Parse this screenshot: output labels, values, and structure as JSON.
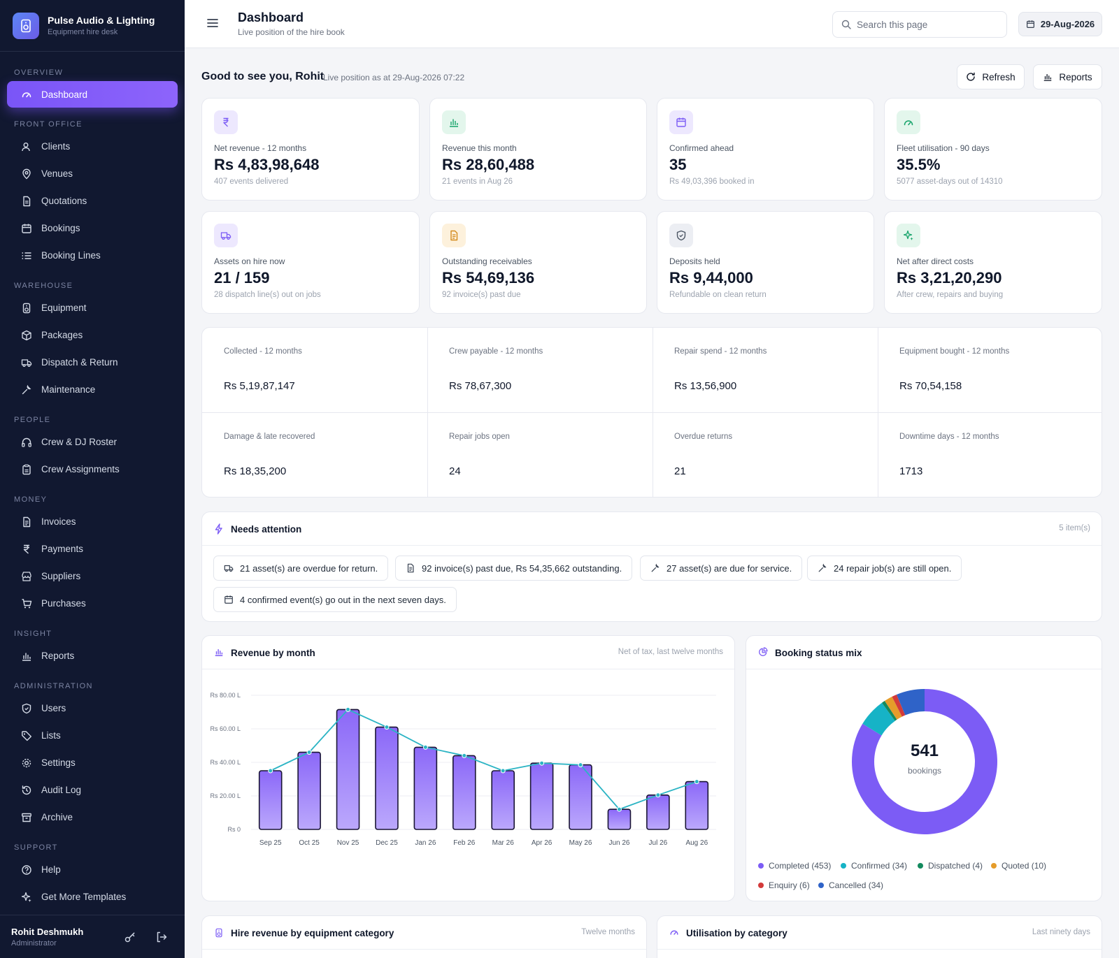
{
  "brand": {
    "title": "Pulse Audio & Lighting",
    "subtitle": "Equipment hire desk"
  },
  "nav": {
    "overview": "OVERVIEW",
    "dashboard": "Dashboard",
    "front_office": "FRONT OFFICE",
    "clients": "Clients",
    "venues": "Venues",
    "quotations": "Quotations",
    "bookings": "Bookings",
    "booking_lines": "Booking Lines",
    "warehouse": "WAREHOUSE",
    "equipment": "Equipment",
    "packages": "Packages",
    "dispatch": "Dispatch & Return",
    "maintenance": "Maintenance",
    "people": "PEOPLE",
    "crew": "Crew & DJ Roster",
    "crew_assignments": "Crew Assignments",
    "money": "MONEY",
    "invoices": "Invoices",
    "payments": "Payments",
    "suppliers": "Suppliers",
    "purchases": "Purchases",
    "insight": "INSIGHT",
    "reports": "Reports",
    "administration": "ADMINISTRATION",
    "users": "Users",
    "lists": "Lists",
    "settings": "Settings",
    "audit_log": "Audit Log",
    "archive": "Archive",
    "support": "SUPPORT",
    "help": "Help",
    "templates": "Get More Templates"
  },
  "user": {
    "name": "Rohit Deshmukh",
    "role": "Administrator"
  },
  "header": {
    "title": "Dashboard",
    "subtitle": "Live position of the hire book",
    "search_placeholder": "Search this page",
    "date": "29-Aug-2026"
  },
  "greeting": {
    "text": "Good to see you, Rohit",
    "live": "Live position as at 29-Aug-2026 07:22",
    "refresh": "Refresh",
    "reports": "Reports"
  },
  "kpis": [
    {
      "label": "Net revenue - 12 months",
      "value": "Rs 4,83,98,648",
      "sub": "407 events delivered",
      "icon": "rupee-icon"
    },
    {
      "label": "Revenue this month",
      "value": "Rs 28,60,488",
      "sub": "21 events in Aug 26",
      "icon": "bar-chart-icon"
    },
    {
      "label": "Confirmed ahead",
      "value": "35",
      "sub": "Rs 49,03,396 booked in",
      "icon": "calendar-icon"
    },
    {
      "label": "Fleet utilisation - 90 days",
      "value": "35.5%",
      "sub": "5077 asset-days out of 14310",
      "icon": "gauge-icon"
    },
    {
      "label": "Assets on hire now",
      "value": "21 / 159",
      "sub": "28 dispatch line(s) out on jobs",
      "icon": "truck-icon"
    },
    {
      "label": "Outstanding receivables",
      "value": "Rs 54,69,136",
      "sub": "92 invoice(s) past due",
      "icon": "document-icon"
    },
    {
      "label": "Deposits held",
      "value": "Rs 9,44,000",
      "sub": "Refundable on clean return",
      "icon": "shield-icon"
    },
    {
      "label": "Net after direct costs",
      "value": "Rs 3,21,20,290",
      "sub": "After crew, repairs and buying",
      "icon": "sparkle-icon"
    }
  ],
  "stats": [
    {
      "label": "Collected - 12 months",
      "value": "Rs 5,19,87,147"
    },
    {
      "label": "Crew payable - 12 months",
      "value": "Rs 78,67,300"
    },
    {
      "label": "Repair spend - 12 months",
      "value": "Rs 13,56,900"
    },
    {
      "label": "Equipment bought - 12 months",
      "value": "Rs 70,54,158"
    },
    {
      "label": "Damage & late recovered",
      "value": "Rs 18,35,200"
    },
    {
      "label": "Repair jobs open",
      "value": "24"
    },
    {
      "label": "Overdue returns",
      "value": "21"
    },
    {
      "label": "Downtime days - 12 months",
      "value": "1713"
    }
  ],
  "attention": {
    "title": "Needs attention",
    "count": "5 item(s)",
    "items": [
      "21 asset(s) are overdue for return.",
      "92 invoice(s) past due, Rs 54,35,662 outstanding.",
      "27 asset(s) are due for service.",
      "24 repair job(s) are still open.",
      "4 confirmed event(s) go out in the next seven days."
    ]
  },
  "revenue_panel": {
    "title": "Revenue by month",
    "note": "Net of tax, last twelve months"
  },
  "status_panel": {
    "title": "Booking status mix",
    "total": "541",
    "total_label": "bookings"
  },
  "bottom_panels": [
    {
      "title": "Hire revenue by equipment category",
      "note": "Twelve months"
    },
    {
      "title": "Utilisation by category",
      "note": "Last ninety days"
    }
  ],
  "colors": {
    "accent": "#7c5cf5",
    "line": "#2bb4c4"
  },
  "chart_data": [
    {
      "type": "bar",
      "title": "Revenue by month",
      "categories": [
        "Sep 25",
        "Oct 25",
        "Nov 25",
        "Dec 25",
        "Jan 26",
        "Feb 26",
        "Mar 26",
        "Apr 26",
        "May 26",
        "Jun 26",
        "Jul 26",
        "Aug 26"
      ],
      "series": [
        {
          "values": [
            35.0,
            46.0,
            71.5,
            61.0,
            49.0,
            44.0,
            35.0,
            39.5,
            38.5,
            12.0,
            20.5,
            28.5
          ]
        }
      ],
      "y_ticks": [
        "Rs 0",
        "Rs 20.00 L",
        "Rs 40.00 L",
        "Rs 60.00 L",
        "Rs 80.00 L"
      ],
      "ylim": [
        0,
        80
      ],
      "grid": true
    },
    {
      "type": "pie",
      "title": "Booking status mix",
      "slices": [
        {
          "label": "Completed (453)",
          "value": 453,
          "color": "#7c5cf5"
        },
        {
          "label": "Confirmed (34)",
          "value": 34,
          "color": "#16b3c6"
        },
        {
          "label": "Dispatched (4)",
          "value": 4,
          "color": "#138a5e"
        },
        {
          "label": "Quoted (10)",
          "value": 10,
          "color": "#e59c2a"
        },
        {
          "label": "Enquiry (6)",
          "value": 6,
          "color": "#d33a3a"
        },
        {
          "label": "Cancelled (34)",
          "value": 34,
          "color": "#2f63c8"
        }
      ]
    }
  ]
}
